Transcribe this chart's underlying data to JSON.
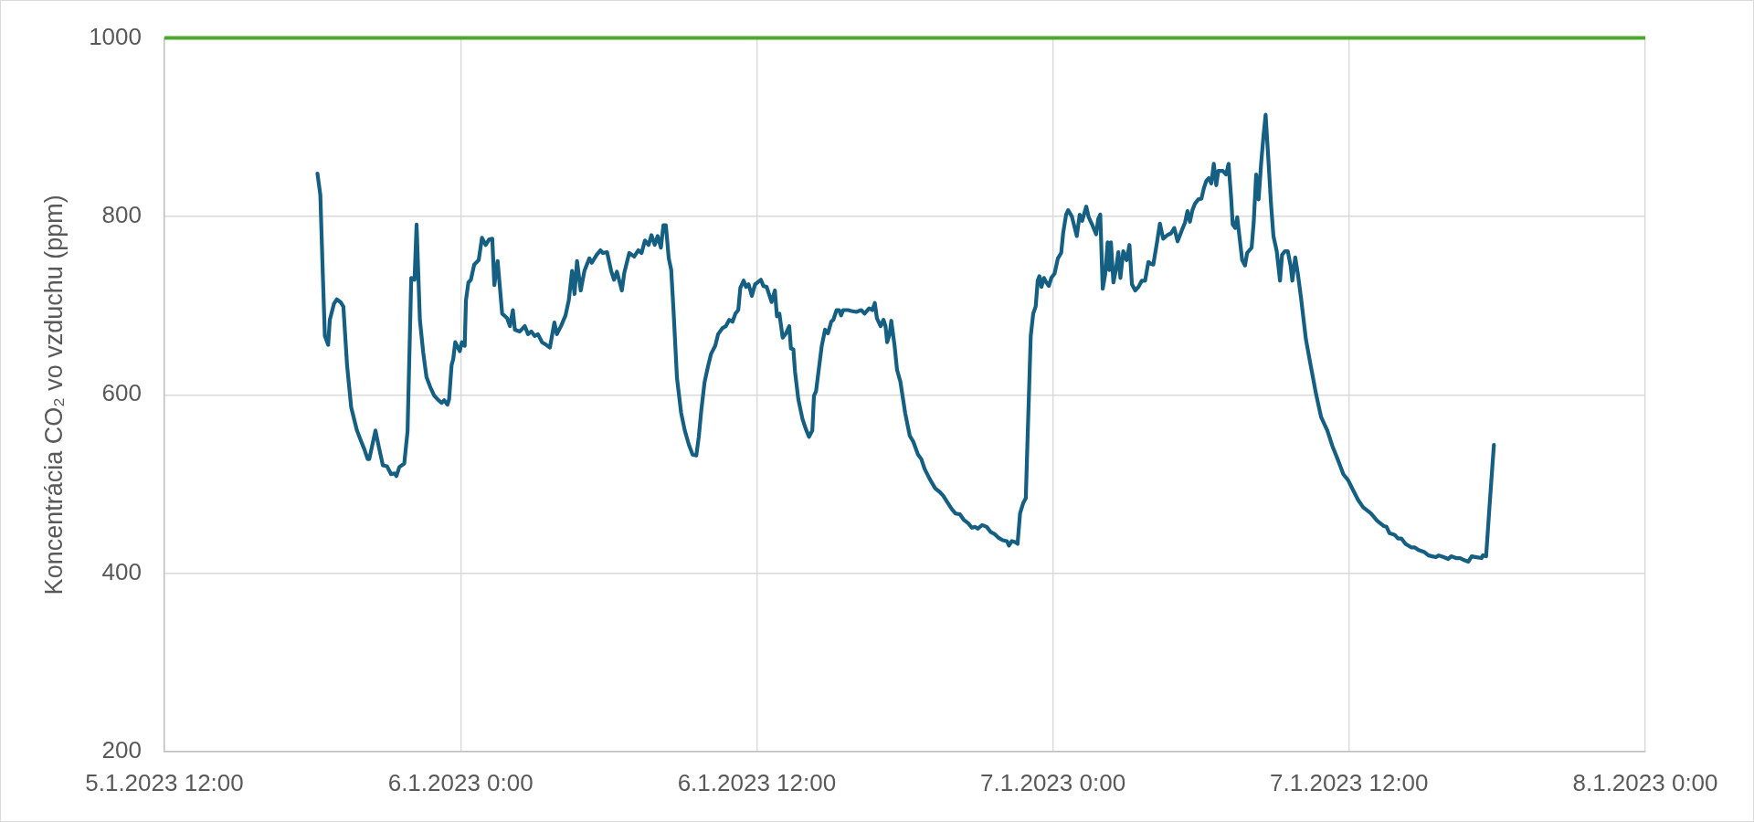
{
  "chart_data": {
    "type": "line",
    "ylabel": "Koncentrácia CO₂ vo vzduchu (ppm)",
    "color": "#156082",
    "marker": "none",
    "line_style": "solid",
    "grid": true,
    "xlim": [
      "2023-01-05T12:00",
      "2023-01-08T00:00"
    ],
    "xticks": [
      {
        "value": "2023-01-05T12:00",
        "label": "5.1.2023 12:00"
      },
      {
        "value": "2023-01-06T00:00",
        "label": "6.1.2023 0:00"
      },
      {
        "value": "2023-01-06T12:00",
        "label": "6.1.2023 12:00"
      },
      {
        "value": "2023-01-07T00:00",
        "label": "7.1.2023 0:00"
      },
      {
        "value": "2023-01-07T12:00",
        "label": "7.1.2023 12:00"
      },
      {
        "value": "2023-01-08T00:00",
        "label": "8.1.2023 0:00"
      }
    ],
    "ylim": [
      200,
      1000
    ],
    "yticks": [
      200,
      400,
      600,
      800,
      1000
    ],
    "ref_lines": [
      {
        "axis": "y",
        "value": 1000,
        "color": "#4ea72e"
      }
    ],
    "x": [
      "2023-01-05T18:12",
      "2023-01-05T18:19",
      "2023-01-05T18:25",
      "2023-01-05T18:30",
      "2023-01-05T18:38",
      "2023-01-05T18:42",
      "2023-01-05T18:52",
      "2023-01-05T18:59",
      "2023-01-05T19:08",
      "2023-01-05T19:15",
      "2023-01-05T19:24",
      "2023-01-05T19:34",
      "2023-01-05T19:48",
      "2023-01-05T19:58",
      "2023-01-05T20:06",
      "2023-01-05T20:14",
      "2023-01-05T20:18",
      "2023-01-05T20:33",
      "2023-01-05T20:41",
      "2023-01-05T20:51",
      "2023-01-05T21:01",
      "2023-01-05T21:11",
      "2023-01-05T21:19",
      "2023-01-05T21:24",
      "2023-01-05T21:31",
      "2023-01-05T21:43",
      "2023-01-05T21:51",
      "2023-01-05T22:00",
      "2023-01-05T22:08",
      "2023-01-05T22:13",
      "2023-01-05T22:21",
      "2023-01-05T22:29",
      "2023-01-05T22:37",
      "2023-01-05T22:46",
      "2023-01-05T22:56",
      "2023-01-05T23:06",
      "2023-01-05T23:14",
      "2023-01-05T23:20",
      "2023-01-05T23:28",
      "2023-01-05T23:32",
      "2023-01-05T23:38",
      "2023-01-05T23:42",
      "2023-01-05T23:47",
      "2023-01-05T23:58",
      "2023-01-06T00:03",
      "2023-01-06T00:10",
      "2023-01-06T00:13",
      "2023-01-06T00:19",
      "2023-01-06T00:25",
      "2023-01-06T00:33",
      "2023-01-06T00:44",
      "2023-01-06T00:52",
      "2023-01-06T01:01",
      "2023-01-06T01:09",
      "2023-01-06T01:17",
      "2023-01-06T01:22",
      "2023-01-06T01:30",
      "2023-01-06T01:41",
      "2023-01-06T01:53",
      "2023-01-06T02:00",
      "2023-01-06T02:07",
      "2023-01-06T02:12",
      "2023-01-06T02:24",
      "2023-01-06T02:36",
      "2023-01-06T02:44",
      "2023-01-06T02:52",
      "2023-01-06T03:00",
      "2023-01-06T03:08",
      "2023-01-06T03:18",
      "2023-01-06T03:28",
      "2023-01-06T03:37",
      "2023-01-06T03:48",
      "2023-01-06T03:54",
      "2023-01-06T04:04",
      "2023-01-06T04:15",
      "2023-01-06T04:23",
      "2023-01-06T04:31",
      "2023-01-06T04:37",
      "2023-01-06T04:43",
      "2023-01-06T04:52",
      "2023-01-06T05:01",
      "2023-01-06T05:13",
      "2023-01-06T05:19",
      "2023-01-06T05:31",
      "2023-01-06T05:40",
      "2023-01-06T05:46",
      "2023-01-06T05:56",
      "2023-01-06T06:06",
      "2023-01-06T06:13",
      "2023-01-06T06:20",
      "2023-01-06T06:32",
      "2023-01-06T06:38",
      "2023-01-06T06:50",
      "2023-01-06T07:02",
      "2023-01-06T07:12",
      "2023-01-06T07:20",
      "2023-01-06T07:28",
      "2023-01-06T07:37",
      "2023-01-06T07:44",
      "2023-01-06T07:52",
      "2023-01-06T07:59",
      "2023-01-06T08:07",
      "2023-01-06T08:13",
      "2023-01-06T08:19",
      "2023-01-06T08:26",
      "2023-01-06T08:32",
      "2023-01-06T08:38",
      "2023-01-06T08:46",
      "2023-01-06T08:56",
      "2023-01-06T09:05",
      "2023-01-06T09:15",
      "2023-01-06T09:24",
      "2023-01-06T09:33",
      "2023-01-06T09:39",
      "2023-01-06T09:45",
      "2023-01-06T09:53",
      "2023-01-06T10:01",
      "2023-01-06T10:09",
      "2023-01-06T10:19",
      "2023-01-06T10:26",
      "2023-01-06T10:37",
      "2023-01-06T10:45",
      "2023-01-06T10:53",
      "2023-01-06T11:01",
      "2023-01-06T11:08",
      "2023-01-06T11:15",
      "2023-01-06T11:20",
      "2023-01-06T11:28",
      "2023-01-06T11:34",
      "2023-01-06T11:40",
      "2023-01-06T11:48",
      "2023-01-06T11:56",
      "2023-01-06T12:02",
      "2023-01-06T12:10",
      "2023-01-06T12:16",
      "2023-01-06T12:24",
      "2023-01-06T12:36",
      "2023-01-06T12:44",
      "2023-01-06T12:49",
      "2023-01-06T12:55",
      "2023-01-06T13:03",
      "2023-01-06T13:11",
      "2023-01-06T13:19",
      "2023-01-06T13:23",
      "2023-01-06T13:29",
      "2023-01-06T13:33",
      "2023-01-06T13:41",
      "2023-01-06T13:51",
      "2023-01-06T13:59",
      "2023-01-06T14:07",
      "2023-01-06T14:15",
      "2023-01-06T14:19",
      "2023-01-06T14:24",
      "2023-01-06T14:30",
      "2023-01-06T14:38",
      "2023-01-06T14:46",
      "2023-01-06T14:53",
      "2023-01-06T15:01",
      "2023-01-06T15:06",
      "2023-01-06T15:14",
      "2023-01-06T15:20",
      "2023-01-06T15:25",
      "2023-01-06T15:30",
      "2023-01-06T15:42",
      "2023-01-06T15:50",
      "2023-01-06T16:02",
      "2023-01-06T16:14",
      "2023-01-06T16:22",
      "2023-01-06T16:33",
      "2023-01-06T16:41",
      "2023-01-06T16:47",
      "2023-01-06T16:52",
      "2023-01-06T17:01",
      "2023-01-06T17:08",
      "2023-01-06T17:13",
      "2023-01-06T17:17",
      "2023-01-06T17:23",
      "2023-01-06T17:27",
      "2023-01-06T17:35",
      "2023-01-06T17:41",
      "2023-01-06T17:49",
      "2023-01-06T18:01",
      "2023-01-06T18:12",
      "2023-01-06T18:20",
      "2023-01-06T18:32",
      "2023-01-06T18:40",
      "2023-01-06T18:48",
      "2023-01-06T19:00",
      "2023-01-06T19:14",
      "2023-01-06T19:25",
      "2023-01-06T19:33",
      "2023-01-06T19:44",
      "2023-01-06T19:54",
      "2023-01-06T20:03",
      "2023-01-06T20:14",
      "2023-01-06T20:23",
      "2023-01-06T20:34",
      "2023-01-06T20:43",
      "2023-01-06T20:51",
      "2023-01-06T20:57",
      "2023-01-06T21:08",
      "2023-01-06T21:19",
      "2023-01-06T21:29",
      "2023-01-06T21:38",
      "2023-01-06T21:47",
      "2023-01-06T21:58",
      "2023-01-06T22:08",
      "2023-01-06T22:13",
      "2023-01-06T22:20",
      "2023-01-06T22:28",
      "2023-01-06T22:34",
      "2023-01-06T22:40",
      "2023-01-06T22:48",
      "2023-01-06T22:54",
      "2023-01-06T22:58",
      "2023-01-06T23:06",
      "2023-01-06T23:12",
      "2023-01-06T23:18",
      "2023-01-06T23:23",
      "2023-01-06T23:27",
      "2023-01-06T23:32",
      "2023-01-06T23:38",
      "2023-01-06T23:44",
      "2023-01-06T23:50",
      "2023-01-06T23:56",
      "2023-01-07T00:04",
      "2023-01-07T00:12",
      "2023-01-07T00:20",
      "2023-01-07T00:25",
      "2023-01-07T00:32",
      "2023-01-07T00:37",
      "2023-01-07T00:46",
      "2023-01-07T00:52",
      "2023-01-07T00:58",
      "2023-01-07T01:05",
      "2023-01-07T01:11",
      "2023-01-07T01:21",
      "2023-01-07T01:27",
      "2023-01-07T01:37",
      "2023-01-07T01:45",
      "2023-01-07T01:50",
      "2023-01-07T01:55",
      "2023-01-07T02:01",
      "2023-01-07T02:07",
      "2023-01-07T02:13",
      "2023-01-07T02:17",
      "2023-01-07T02:21",
      "2023-01-07T02:27",
      "2023-01-07T02:33",
      "2023-01-07T02:39",
      "2023-01-07T02:44",
      "2023-01-07T02:51",
      "2023-01-07T02:59",
      "2023-01-07T03:06",
      "2023-01-07T03:12",
      "2023-01-07T03:20",
      "2023-01-07T03:28",
      "2023-01-07T03:36",
      "2023-01-07T03:44",
      "2023-01-07T03:52",
      "2023-01-07T03:58",
      "2023-01-07T04:04",
      "2023-01-07T04:13",
      "2023-01-07T04:20",
      "2023-01-07T04:28",
      "2023-01-07T04:38",
      "2023-01-07T04:47",
      "2023-01-07T04:55",
      "2023-01-07T05:03",
      "2023-01-07T05:13",
      "2023-01-07T05:21",
      "2023-01-07T05:27",
      "2023-01-07T05:33",
      "2023-01-07T05:39",
      "2023-01-07T05:45",
      "2023-01-07T05:53",
      "2023-01-07T06:01",
      "2023-01-07T06:07",
      "2023-01-07T06:13",
      "2023-01-07T06:19",
      "2023-01-07T06:25",
      "2023-01-07T06:31",
      "2023-01-07T06:37",
      "2023-01-07T06:42",
      "2023-01-07T06:53",
      "2023-01-07T07:01",
      "2023-01-07T07:07",
      "2023-01-07T07:13",
      "2023-01-07T07:17",
      "2023-01-07T07:23",
      "2023-01-07T07:28",
      "2023-01-07T07:34",
      "2023-01-07T07:40",
      "2023-01-07T07:47",
      "2023-01-07T07:52",
      "2023-01-07T08:03",
      "2023-01-07T08:08",
      "2023-01-07T08:14",
      "2023-01-07T08:20",
      "2023-01-07T08:26",
      "2023-01-07T08:32",
      "2023-01-07T08:37",
      "2023-01-07T08:44",
      "2023-01-07T08:50",
      "2023-01-07T08:56",
      "2023-01-07T09:04",
      "2023-01-07T09:12",
      "2023-01-07T09:17",
      "2023-01-07T09:24",
      "2023-01-07T09:31",
      "2023-01-07T09:38",
      "2023-01-07T09:42",
      "2023-01-07T09:49",
      "2023-01-07T09:55",
      "2023-01-07T10:03",
      "2023-01-07T10:15",
      "2023-01-07T10:27",
      "2023-01-07T10:40",
      "2023-01-07T10:52",
      "2023-01-07T11:07",
      "2023-01-07T11:19",
      "2023-01-07T11:32",
      "2023-01-07T11:46",
      "2023-01-07T11:58",
      "2023-01-07T12:12",
      "2023-01-07T12:22",
      "2023-01-07T12:34",
      "2023-01-07T12:53",
      "2023-01-07T13:08",
      "2023-01-07T13:24",
      "2023-01-07T13:31",
      "2023-01-07T13:38",
      "2023-01-07T13:51",
      "2023-01-07T13:59",
      "2023-01-07T14:07",
      "2023-01-07T14:17",
      "2023-01-07T14:31",
      "2023-01-07T14:39",
      "2023-01-07T14:49",
      "2023-01-07T15:02",
      "2023-01-07T15:13",
      "2023-01-07T15:22",
      "2023-01-07T15:31",
      "2023-01-07T15:38",
      "2023-01-07T15:50",
      "2023-01-07T16:01",
      "2023-01-07T16:08",
      "2023-01-07T16:20",
      "2023-01-07T16:30",
      "2023-01-07T16:38",
      "2023-01-07T16:50",
      "2023-01-07T16:58",
      "2023-01-07T17:10",
      "2023-01-07T17:22",
      "2023-01-07T17:25",
      "2023-01-07T17:33",
      "2023-01-07T17:41",
      "2023-01-07T17:52"
    ],
    "values": [
      848,
      824,
      735,
      666,
      656,
      684,
      702,
      707,
      704,
      699,
      633,
      586,
      560,
      548,
      539,
      528,
      528,
      560,
      542,
      521,
      520,
      511,
      512,
      509,
      519,
      523,
      559,
      731,
      729,
      791,
      684,
      648,
      620,
      609,
      599,
      594,
      591,
      594,
      589,
      595,
      633,
      640,
      659,
      649,
      659,
      655,
      706,
      726,
      729,
      746,
      751,
      776,
      768,
      774,
      775,
      723,
      750,
      691,
      686,
      677,
      695,
      673,
      671,
      677,
      668,
      671,
      666,
      668,
      659,
      656,
      653,
      681,
      668,
      677,
      689,
      706,
      739,
      713,
      750,
      717,
      739,
      753,
      748,
      757,
      762,
      759,
      760,
      739,
      729,
      738,
      717,
      737,
      759,
      755,
      762,
      759,
      773,
      768,
      779,
      768,
      778,
      765,
      790,
      790,
      753,
      740,
      691,
      619,
      580,
      560,
      544,
      533,
      532,
      553,
      582,
      614,
      631,
      646,
      655,
      668,
      675,
      677,
      684,
      682,
      691,
      695,
      720,
      728,
      721,
      724,
      711,
      724,
      726,
      729,
      722,
      721,
      704,
      717,
      688,
      691,
      664,
      669,
      677,
      652,
      651,
      626,
      595,
      573,
      562,
      553,
      560,
      599,
      604,
      626,
      655,
      673,
      669,
      682,
      684,
      695,
      695,
      689,
      695,
      695,
      694,
      693,
      695,
      691,
      697,
      695,
      703,
      686,
      677,
      684,
      677,
      659,
      668,
      683,
      655,
      628,
      615,
      579,
      554,
      548,
      533,
      528,
      517,
      506,
      495,
      491,
      487,
      479,
      472,
      467,
      466,
      460,
      456,
      451,
      452,
      450,
      454,
      452,
      446,
      444,
      440,
      437,
      436,
      431,
      436,
      435,
      433,
      467,
      479,
      484,
      546,
      666,
      691,
      699,
      728,
      733,
      721,
      731,
      726,
      722,
      731,
      736,
      753,
      759,
      782,
      802,
      807,
      800,
      789,
      778,
      802,
      795,
      811,
      799,
      789,
      780,
      797,
      802,
      719,
      735,
      771,
      740,
      771,
      726,
      740,
      760,
      731,
      761,
      751,
      768,
      724,
      717,
      721,
      728,
      728,
      749,
      747,
      746,
      771,
      792,
      775,
      779,
      781,
      787,
      772,
      784,
      793,
      806,
      794,
      807,
      814,
      819,
      820,
      832,
      840,
      843,
      837,
      859,
      835,
      851,
      851,
      847,
      859,
      822,
      791,
      787,
      799,
      775,
      751,
      745,
      759,
      765,
      793,
      847,
      819,
      859,
      891,
      914,
      862,
      815,
      778,
      761,
      728,
      757,
      761,
      761,
      744,
      728,
      754,
      737,
      709,
      662,
      632,
      600,
      575,
      560,
      543,
      528,
      511,
      504,
      491,
      482,
      474,
      467,
      459,
      453,
      452,
      445,
      443,
      439,
      439,
      433,
      429,
      429,
      426,
      424,
      420,
      419,
      418,
      420,
      418,
      416,
      419,
      417,
      417,
      415,
      413,
      419,
      418,
      417,
      420,
      419,
      473,
      544
    ]
  }
}
